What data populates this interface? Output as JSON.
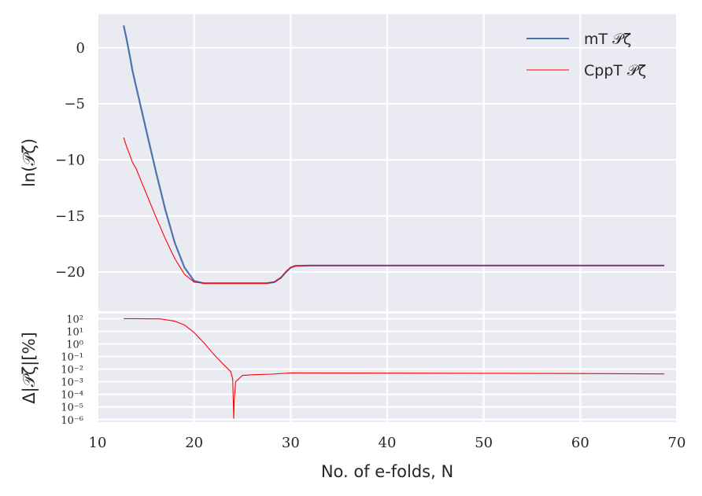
{
  "chart_data": [
    {
      "type": "line",
      "ylabel": "ln(𝒫ζ)",
      "xlim": [
        10,
        70
      ],
      "ylim": [
        -23.5,
        3
      ],
      "x_ticks": [
        "10",
        "20",
        "30",
        "40",
        "50",
        "60",
        "70"
      ],
      "y_ticks": [
        "0",
        "−5",
        "−10",
        "−15",
        "−20"
      ],
      "y_tick_values": [
        0,
        -5,
        -10,
        -15,
        -20
      ],
      "grid": true,
      "legend_position": "top-right",
      "series": [
        {
          "name": "mT 𝒫ζ",
          "color": "#4c72b0",
          "points": [
            [
              12.7,
              2.0
            ],
            [
              13.0,
              0.8
            ],
            [
              13.4,
              -1.0
            ],
            [
              13.6,
              -2.0
            ],
            [
              14.0,
              -3.5
            ],
            [
              15.0,
              -7.2
            ],
            [
              16.0,
              -10.9
            ],
            [
              17.0,
              -14.4
            ],
            [
              18.0,
              -17.4
            ],
            [
              19.0,
              -19.6
            ],
            [
              20.0,
              -20.8
            ],
            [
              21.0,
              -21.0
            ],
            [
              22.0,
              -21.0
            ],
            [
              24.0,
              -21.0
            ],
            [
              26.0,
              -21.0
            ],
            [
              27.5,
              -21.0
            ],
            [
              28.3,
              -20.9
            ],
            [
              29.0,
              -20.5
            ],
            [
              29.5,
              -20.0
            ],
            [
              30.0,
              -19.6
            ],
            [
              30.5,
              -19.45
            ],
            [
              32.0,
              -19.42
            ],
            [
              40.0,
              -19.42
            ],
            [
              50.0,
              -19.42
            ],
            [
              60.0,
              -19.42
            ],
            [
              68.7,
              -19.42
            ]
          ]
        },
        {
          "name": "CppT 𝒫ζ",
          "color": "#ff0000",
          "points": [
            [
              12.7,
              -8.0
            ],
            [
              13.0,
              -8.8
            ],
            [
              13.4,
              -9.7
            ],
            [
              13.6,
              -10.2
            ],
            [
              14.0,
              -10.8
            ],
            [
              15.0,
              -12.9
            ],
            [
              16.0,
              -15.0
            ],
            [
              17.0,
              -17.0
            ],
            [
              18.0,
              -18.8
            ],
            [
              19.0,
              -20.2
            ],
            [
              20.0,
              -20.9
            ],
            [
              21.0,
              -21.0
            ],
            [
              22.0,
              -21.0
            ],
            [
              24.0,
              -21.0
            ],
            [
              26.0,
              -21.0
            ],
            [
              27.5,
              -21.0
            ],
            [
              28.3,
              -20.9
            ],
            [
              29.0,
              -20.5
            ],
            [
              29.5,
              -20.0
            ],
            [
              30.0,
              -19.6
            ],
            [
              30.5,
              -19.45
            ],
            [
              32.0,
              -19.42
            ],
            [
              40.0,
              -19.42
            ],
            [
              50.0,
              -19.42
            ],
            [
              60.0,
              -19.42
            ],
            [
              68.7,
              -19.42
            ]
          ]
        }
      ]
    },
    {
      "type": "line",
      "ylabel": "Δ|𝒫ζ|[%]",
      "xlabel": "No.  of e-folds, N",
      "xlim": [
        10,
        70
      ],
      "yscale": "log",
      "y_tick_exponents": [
        2,
        1,
        0,
        -1,
        -2,
        -3,
        -4,
        -5,
        -6
      ],
      "y_ticks": [
        "10²",
        "10¹",
        "10⁰",
        "10⁻¹",
        "10⁻²",
        "10⁻³",
        "10⁻⁴",
        "10⁻⁵",
        "10⁻⁶"
      ],
      "grid": true,
      "series": [
        {
          "color": "#ff0000",
          "points_log10": [
            [
              12.7,
              2.0
            ],
            [
              14.0,
              2.0
            ],
            [
              16.5,
              1.98
            ],
            [
              18.0,
              1.8
            ],
            [
              19.0,
              1.5
            ],
            [
              20.0,
              0.9
            ],
            [
              21.0,
              0.1
            ],
            [
              22.0,
              -0.8
            ],
            [
              23.0,
              -1.6
            ],
            [
              23.8,
              -2.2
            ],
            [
              24.0,
              -2.8
            ],
            [
              24.1,
              -5.9
            ],
            [
              24.15,
              -4.5
            ],
            [
              24.3,
              -3.0
            ],
            [
              25.0,
              -2.5
            ],
            [
              26.0,
              -2.45
            ],
            [
              28.0,
              -2.4
            ],
            [
              30.0,
              -2.3
            ],
            [
              40.0,
              -2.32
            ],
            [
              50.0,
              -2.33
            ],
            [
              60.0,
              -2.35
            ],
            [
              68.7,
              -2.38
            ]
          ]
        }
      ]
    }
  ]
}
